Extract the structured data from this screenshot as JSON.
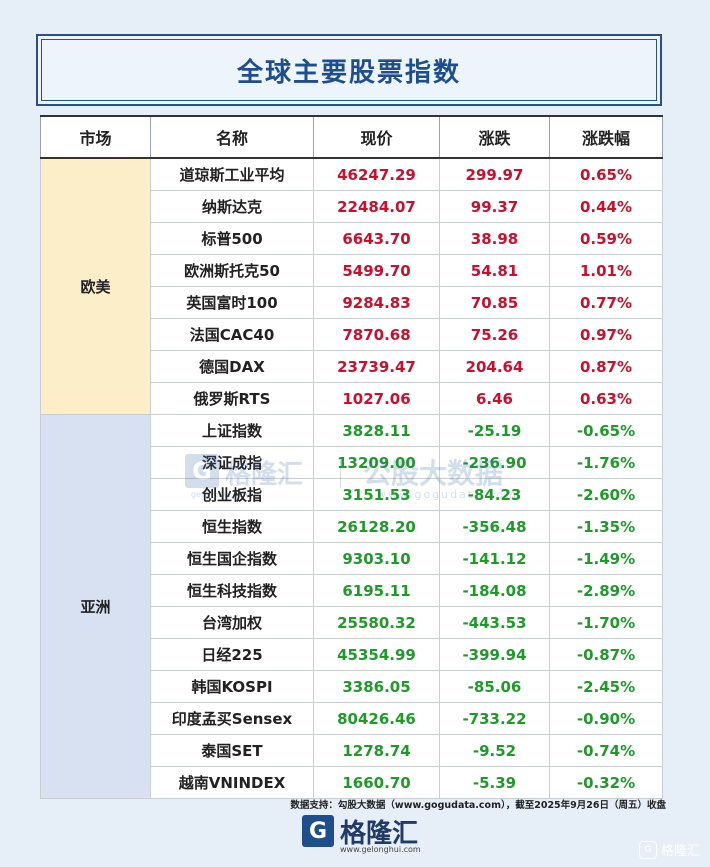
{
  "title": "全球主要股票指数",
  "headers": [
    "市场",
    "名称",
    "现价",
    "涨跌",
    "涨跌幅"
  ],
  "markets": {
    "europe_us": "欧美",
    "asia": "亚洲"
  },
  "rows": [
    {
      "name": "道琼斯工业平均",
      "price": "46247.29",
      "change": "299.97",
      "pct": "0.65%",
      "dir": "up"
    },
    {
      "name": "纳斯达克",
      "price": "22484.07",
      "change": "99.37",
      "pct": "0.44%",
      "dir": "up"
    },
    {
      "name": "标普500",
      "price": "6643.70",
      "change": "38.98",
      "pct": "0.59%",
      "dir": "up"
    },
    {
      "name": "欧洲斯托克50",
      "price": "5499.70",
      "change": "54.81",
      "pct": "1.01%",
      "dir": "up"
    },
    {
      "name": "英国富时100",
      "price": "9284.83",
      "change": "70.85",
      "pct": "0.77%",
      "dir": "up"
    },
    {
      "name": "法国CAC40",
      "price": "7870.68",
      "change": "75.26",
      "pct": "0.97%",
      "dir": "up"
    },
    {
      "name": "德国DAX",
      "price": "23739.47",
      "change": "204.64",
      "pct": "0.87%",
      "dir": "up"
    },
    {
      "name": "俄罗斯RTS",
      "price": "1027.06",
      "change": "6.46",
      "pct": "0.63%",
      "dir": "up"
    },
    {
      "name": "上证指数",
      "price": "3828.11",
      "change": "-25.19",
      "pct": "-0.65%",
      "dir": "down"
    },
    {
      "name": "深证成指",
      "price": "13209.00",
      "change": "-236.90",
      "pct": "-1.76%",
      "dir": "down"
    },
    {
      "name": "创业板指",
      "price": "3151.53",
      "change": "-84.23",
      "pct": "-2.60%",
      "dir": "down"
    },
    {
      "name": "恒生指数",
      "price": "26128.20",
      "change": "-356.48",
      "pct": "-1.35%",
      "dir": "down"
    },
    {
      "name": "恒生国企指数",
      "price": "9303.10",
      "change": "-141.12",
      "pct": "-1.49%",
      "dir": "down"
    },
    {
      "name": "恒生科技指数",
      "price": "6195.11",
      "change": "-184.08",
      "pct": "-2.89%",
      "dir": "down"
    },
    {
      "name": "台湾加权",
      "price": "25580.32",
      "change": "-443.53",
      "pct": "-1.70%",
      "dir": "down"
    },
    {
      "name": "日经225",
      "price": "45354.99",
      "change": "-399.94",
      "pct": "-0.87%",
      "dir": "down"
    },
    {
      "name": "韩国KOSPI",
      "price": "3386.05",
      "change": "-85.06",
      "pct": "-2.45%",
      "dir": "down"
    },
    {
      "name": "印度孟买Sensex",
      "price": "80426.46",
      "change": "-733.22",
      "pct": "-0.90%",
      "dir": "down"
    },
    {
      "name": "泰国SET",
      "price": "1278.74",
      "change": "-9.52",
      "pct": "-0.74%",
      "dir": "down"
    },
    {
      "name": "越南VNINDEX",
      "price": "1660.70",
      "change": "-5.39",
      "pct": "-0.32%",
      "dir": "down"
    }
  ],
  "watermark": {
    "brand": "格隆汇",
    "brand_sub": "gelonghui.com",
    "product": "公股大数据",
    "product_sub": "www.gogudata.com"
  },
  "footer": {
    "note": "数据支持：勾股大数据（www.gogudata.com），截至2025年9月26日（周五）收盘",
    "logo_text": "格隆汇",
    "logo_sub": "www.gelonghui.com",
    "corner": "格隆汇"
  },
  "colors": {
    "up": "#c8102e",
    "down": "#1f9a2a",
    "title": "#1f4e8c",
    "europe_bg": "#fbeec9",
    "asia_bg": "#d7e1f2"
  }
}
